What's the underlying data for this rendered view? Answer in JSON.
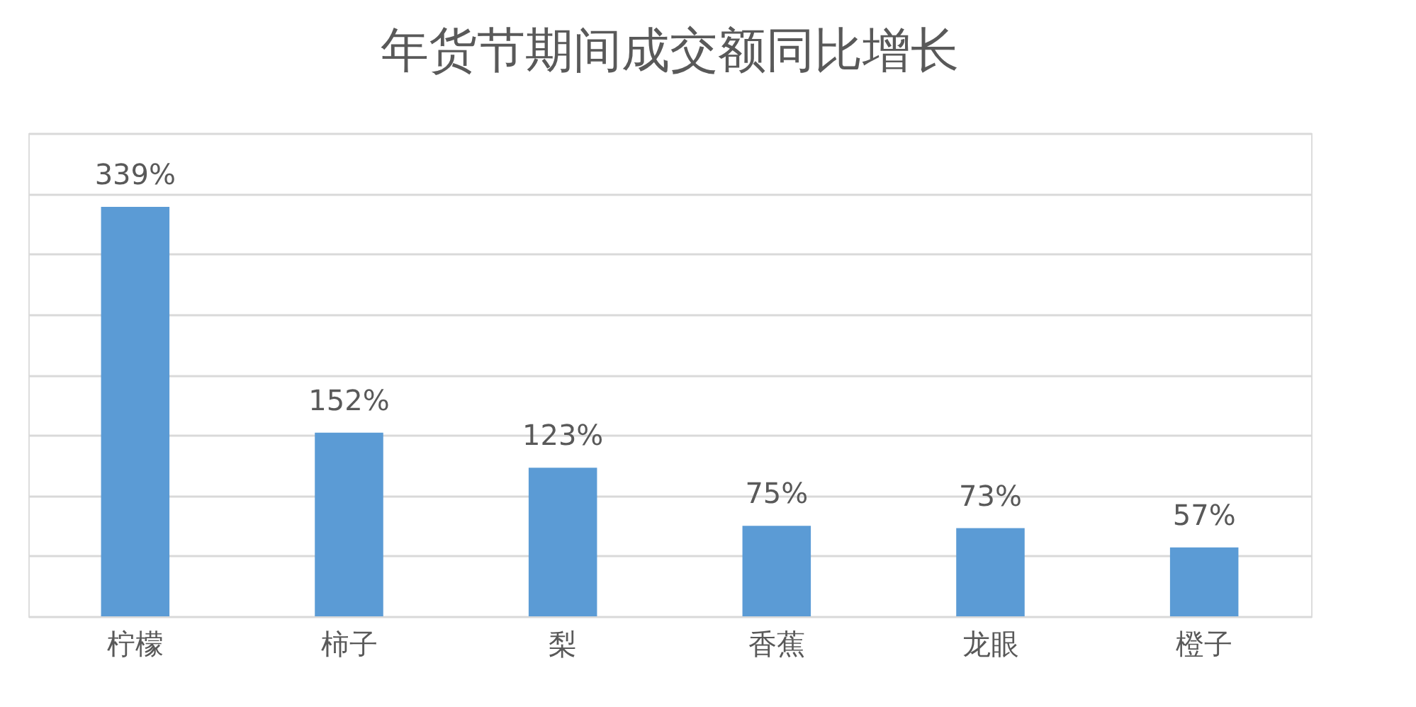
{
  "chart_data": {
    "type": "bar",
    "title": "年货节期间成交额同比增长",
    "categories": [
      "柠檬",
      "柿子",
      "梨",
      "香蕉",
      "龙眼",
      "橙子"
    ],
    "values": [
      339,
      152,
      123,
      75,
      73,
      57
    ],
    "value_labels": [
      "339%",
      "152%",
      "123%",
      "75%",
      "73%",
      "57%"
    ],
    "color": "#5b9bd5",
    "ylim": [
      0,
      400
    ],
    "yticks": [
      {
        "value": 0,
        "label": null
      },
      {
        "value": 50,
        "label": null
      },
      {
        "value": 100,
        "label": null
      },
      {
        "value": 150,
        "label": null
      },
      {
        "value": 200,
        "label": null
      },
      {
        "value": 250,
        "label": null
      },
      {
        "value": 300,
        "label": null
      },
      {
        "value": 350,
        "label": null
      },
      {
        "value": 400,
        "label": null
      }
    ],
    "grid": "y",
    "tick_labels": "x"
  }
}
